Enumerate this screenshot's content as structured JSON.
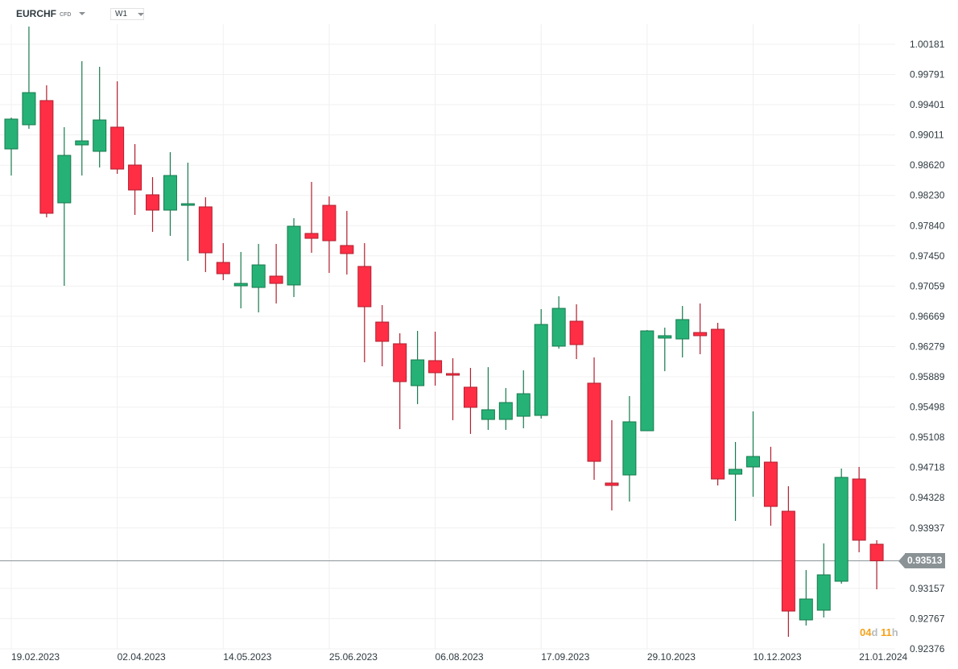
{
  "header": {
    "symbol": "EURCHF",
    "instrument_type": "CFD",
    "timeframe": "W1"
  },
  "current_price": "0.93513",
  "countdown": {
    "days": "04",
    "days_unit": "d",
    "hours": "11",
    "hours_unit": "h"
  },
  "colors": {
    "up": "#26b276",
    "up_border": "#177a4e",
    "down": "#ff2e45",
    "down_border": "#b01f2e",
    "grid": "#f0f0f0",
    "price_line": "#8a9296",
    "countdown_number": "#f5a21b",
    "countdown_unit": "#b8bcbf"
  },
  "chart_data": {
    "type": "candlestick",
    "title": "",
    "xlabel": "",
    "ylabel": "",
    "ylim": [
      0.92376,
      1.00181
    ],
    "grid": true,
    "y_tick_labels": [
      "1.00181",
      "0.99791",
      "0.99401",
      "0.99011",
      "0.98620",
      "0.98230",
      "0.97840",
      "0.97450",
      "0.97059",
      "0.96669",
      "0.96279",
      "0.95889",
      "0.95498",
      "0.95108",
      "0.94718",
      "0.94328",
      "0.93937",
      "0.93157",
      "0.92767",
      "0.92376"
    ],
    "x_tick_labels": [
      "19.02.2023",
      "02.04.2023",
      "14.05.2023",
      "25.06.2023",
      "06.08.2023",
      "17.09.2023",
      "29.10.2023",
      "10.12.2023",
      "21.01.2024"
    ],
    "x_tick_every_n_weeks": 6,
    "candles_ohlc": [
      [
        0.9883,
        0.99235,
        0.98487,
        0.99215
      ],
      [
        0.99142,
        1.0041,
        0.9909,
        0.99557
      ],
      [
        0.99454,
        0.99651,
        0.97947,
        0.97999
      ],
      [
        0.98134,
        0.99111,
        0.97063,
        0.98747
      ],
      [
        0.98882,
        0.99963,
        0.98487,
        0.98934
      ],
      [
        0.98799,
        0.9989,
        0.98591,
        0.99204
      ],
      [
        0.99111,
        0.99703,
        0.98508,
        0.9857
      ],
      [
        0.98622,
        0.98892,
        0.97978,
        0.983
      ],
      [
        0.98238,
        0.98466,
        0.97759,
        0.9804
      ],
      [
        0.9804,
        0.98788,
        0.97708,
        0.98487
      ],
      [
        0.98102,
        0.98653,
        0.97385,
        0.98123
      ],
      [
        0.98082,
        0.98206,
        0.9724,
        0.97489
      ],
      [
        0.97365,
        0.97614,
        0.97136,
        0.97219
      ],
      [
        0.97063,
        0.975,
        0.96772,
        0.97094
      ],
      [
        0.97042,
        0.97604,
        0.9672,
        0.97333
      ],
      [
        0.97188,
        0.97604,
        0.96835,
        0.97094
      ],
      [
        0.97074,
        0.97936,
        0.96918,
        0.97832
      ],
      [
        0.97739,
        0.98404,
        0.97489,
        0.97676
      ],
      [
        0.98102,
        0.98217,
        0.97229,
        0.97645
      ],
      [
        0.97583,
        0.9803,
        0.97209,
        0.97479
      ],
      [
        0.97313,
        0.97614,
        0.96076,
        0.96793
      ],
      [
        0.96595,
        0.96814,
        0.96024,
        0.96346
      ],
      [
        0.96315,
        0.9645,
        0.95213,
        0.95826
      ],
      [
        0.95774,
        0.96481,
        0.95535,
        0.96107
      ],
      [
        0.96097,
        0.96471,
        0.95774,
        0.95941
      ],
      [
        0.9593,
        0.96128,
        0.95328,
        0.9591
      ],
      [
        0.95754,
        0.96003,
        0.95151,
        0.95494
      ],
      [
        0.95338,
        0.96013,
        0.95203,
        0.95463
      ],
      [
        0.95338,
        0.95743,
        0.95203,
        0.95556
      ],
      [
        0.95379,
        0.95972,
        0.95224,
        0.9567
      ],
      [
        0.9539,
        0.96762,
        0.95348,
        0.96564
      ],
      [
        0.96284,
        0.96928,
        0.96252,
        0.96772
      ],
      [
        0.96606,
        0.96824,
        0.96117,
        0.96304
      ],
      [
        0.95806,
        0.96138,
        0.94558,
        0.94797
      ],
      [
        0.94517,
        0.95328,
        0.94163,
        0.94486
      ],
      [
        0.94621,
        0.95639,
        0.94278,
        0.95307
      ],
      [
        0.95192,
        0.96492,
        0.95192,
        0.96481
      ],
      [
        0.96388,
        0.96523,
        0.95961,
        0.96419
      ],
      [
        0.96377,
        0.96803,
        0.96138,
        0.96627
      ],
      [
        0.9646,
        0.96835,
        0.9618,
        0.96419
      ],
      [
        0.96502,
        0.96585,
        0.94486,
        0.94569
      ],
      [
        0.94631,
        0.95047,
        0.94028,
        0.94694
      ],
      [
        0.94725,
        0.95442,
        0.9434,
        0.9486
      ],
      [
        0.94787,
        0.94985,
        0.93966,
        0.94215
      ],
      [
        0.94153,
        0.94475,
        0.92532,
        0.92864
      ],
      [
        0.9275,
        0.93394,
        0.92677,
        0.9302
      ],
      [
        0.92875,
        0.93737,
        0.92781,
        0.93332
      ],
      [
        0.93249,
        0.94704,
        0.93218,
        0.9459
      ],
      [
        0.94569,
        0.94725,
        0.93623,
        0.93779
      ],
      [
        0.93727,
        0.93779,
        0.93145,
        0.93513
      ]
    ]
  }
}
